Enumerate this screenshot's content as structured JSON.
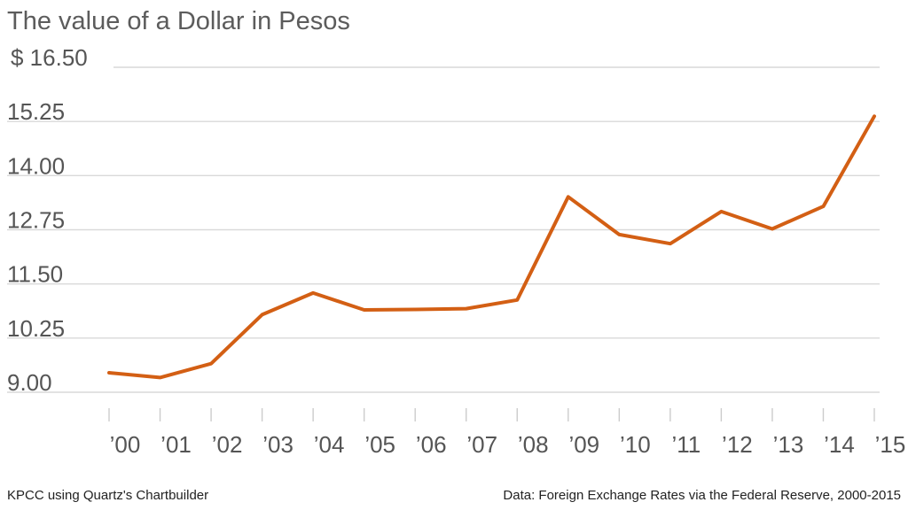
{
  "chart_data": {
    "type": "line",
    "title": "The value of a Dollar in Pesos",
    "currency_prefix": "$",
    "xlabel": "",
    "ylabel": "",
    "ylim": [
      9.0,
      16.5
    ],
    "y_ticks": [
      "9.00",
      "10.25",
      "11.50",
      "12.75",
      "14.00",
      "15.25",
      "16.50"
    ],
    "x_tick_labels": [
      "’00",
      "’01",
      "’02",
      "’03",
      "’04",
      "’05",
      "’06",
      "’07",
      "’08",
      "’09",
      "’10",
      "’11",
      "’12",
      "’13",
      "’14",
      "’15"
    ],
    "grid": true,
    "legend": "none",
    "series": [
      {
        "color": "#d35f14",
        "values": [
          9.45,
          9.34,
          9.66,
          10.79,
          11.29,
          10.9,
          10.91,
          10.93,
          11.13,
          13.51,
          12.64,
          12.43,
          13.17,
          12.77,
          13.29,
          15.37
        ]
      }
    ]
  },
  "footer": {
    "source_left": "KPCC using Quartz's Chartbuilder",
    "source_right": "Data: Foreign Exchange Rates via the Federal Reserve, 2000-2015"
  }
}
